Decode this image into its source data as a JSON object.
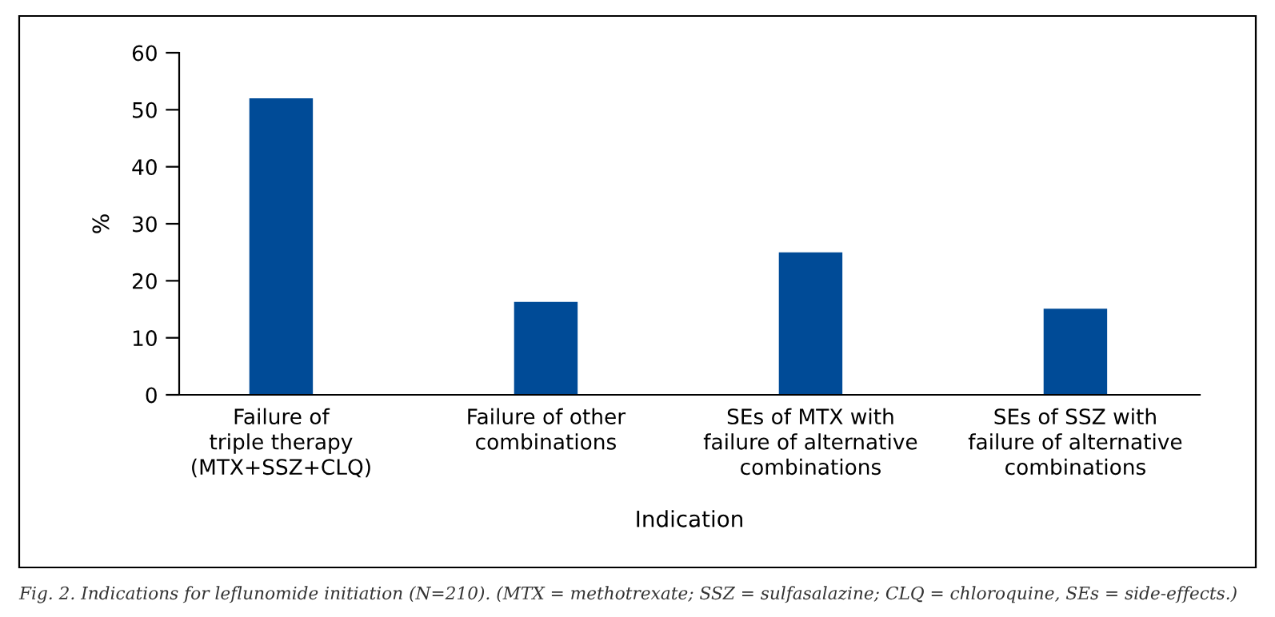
{
  "chart_data": {
    "type": "bar",
    "categories": [
      "Failure of\ntriple therapy\n(MTX+SSZ+CLQ)",
      "Failure of other\ncombinations",
      "SEs of MTX with\nfailure of alternative\ncombinations",
      "SEs of SSZ with\nfailure of alternative\ncombinations"
    ],
    "values": [
      52,
      16.3,
      25,
      15.1
    ],
    "color": "#004b97",
    "xlabel": "Indication",
    "ylabel": "%",
    "ylim": [
      0,
      60
    ],
    "yticks": [
      0,
      10,
      20,
      30,
      40,
      50,
      60
    ],
    "grid": false,
    "annotations": [
      "Fig. 2. Indications for leflunomide initiation (N=210). (MTX = methotrexate; SSZ = sulfasalazine; CLQ = chloroquine, SEs = side-effects.)"
    ]
  }
}
